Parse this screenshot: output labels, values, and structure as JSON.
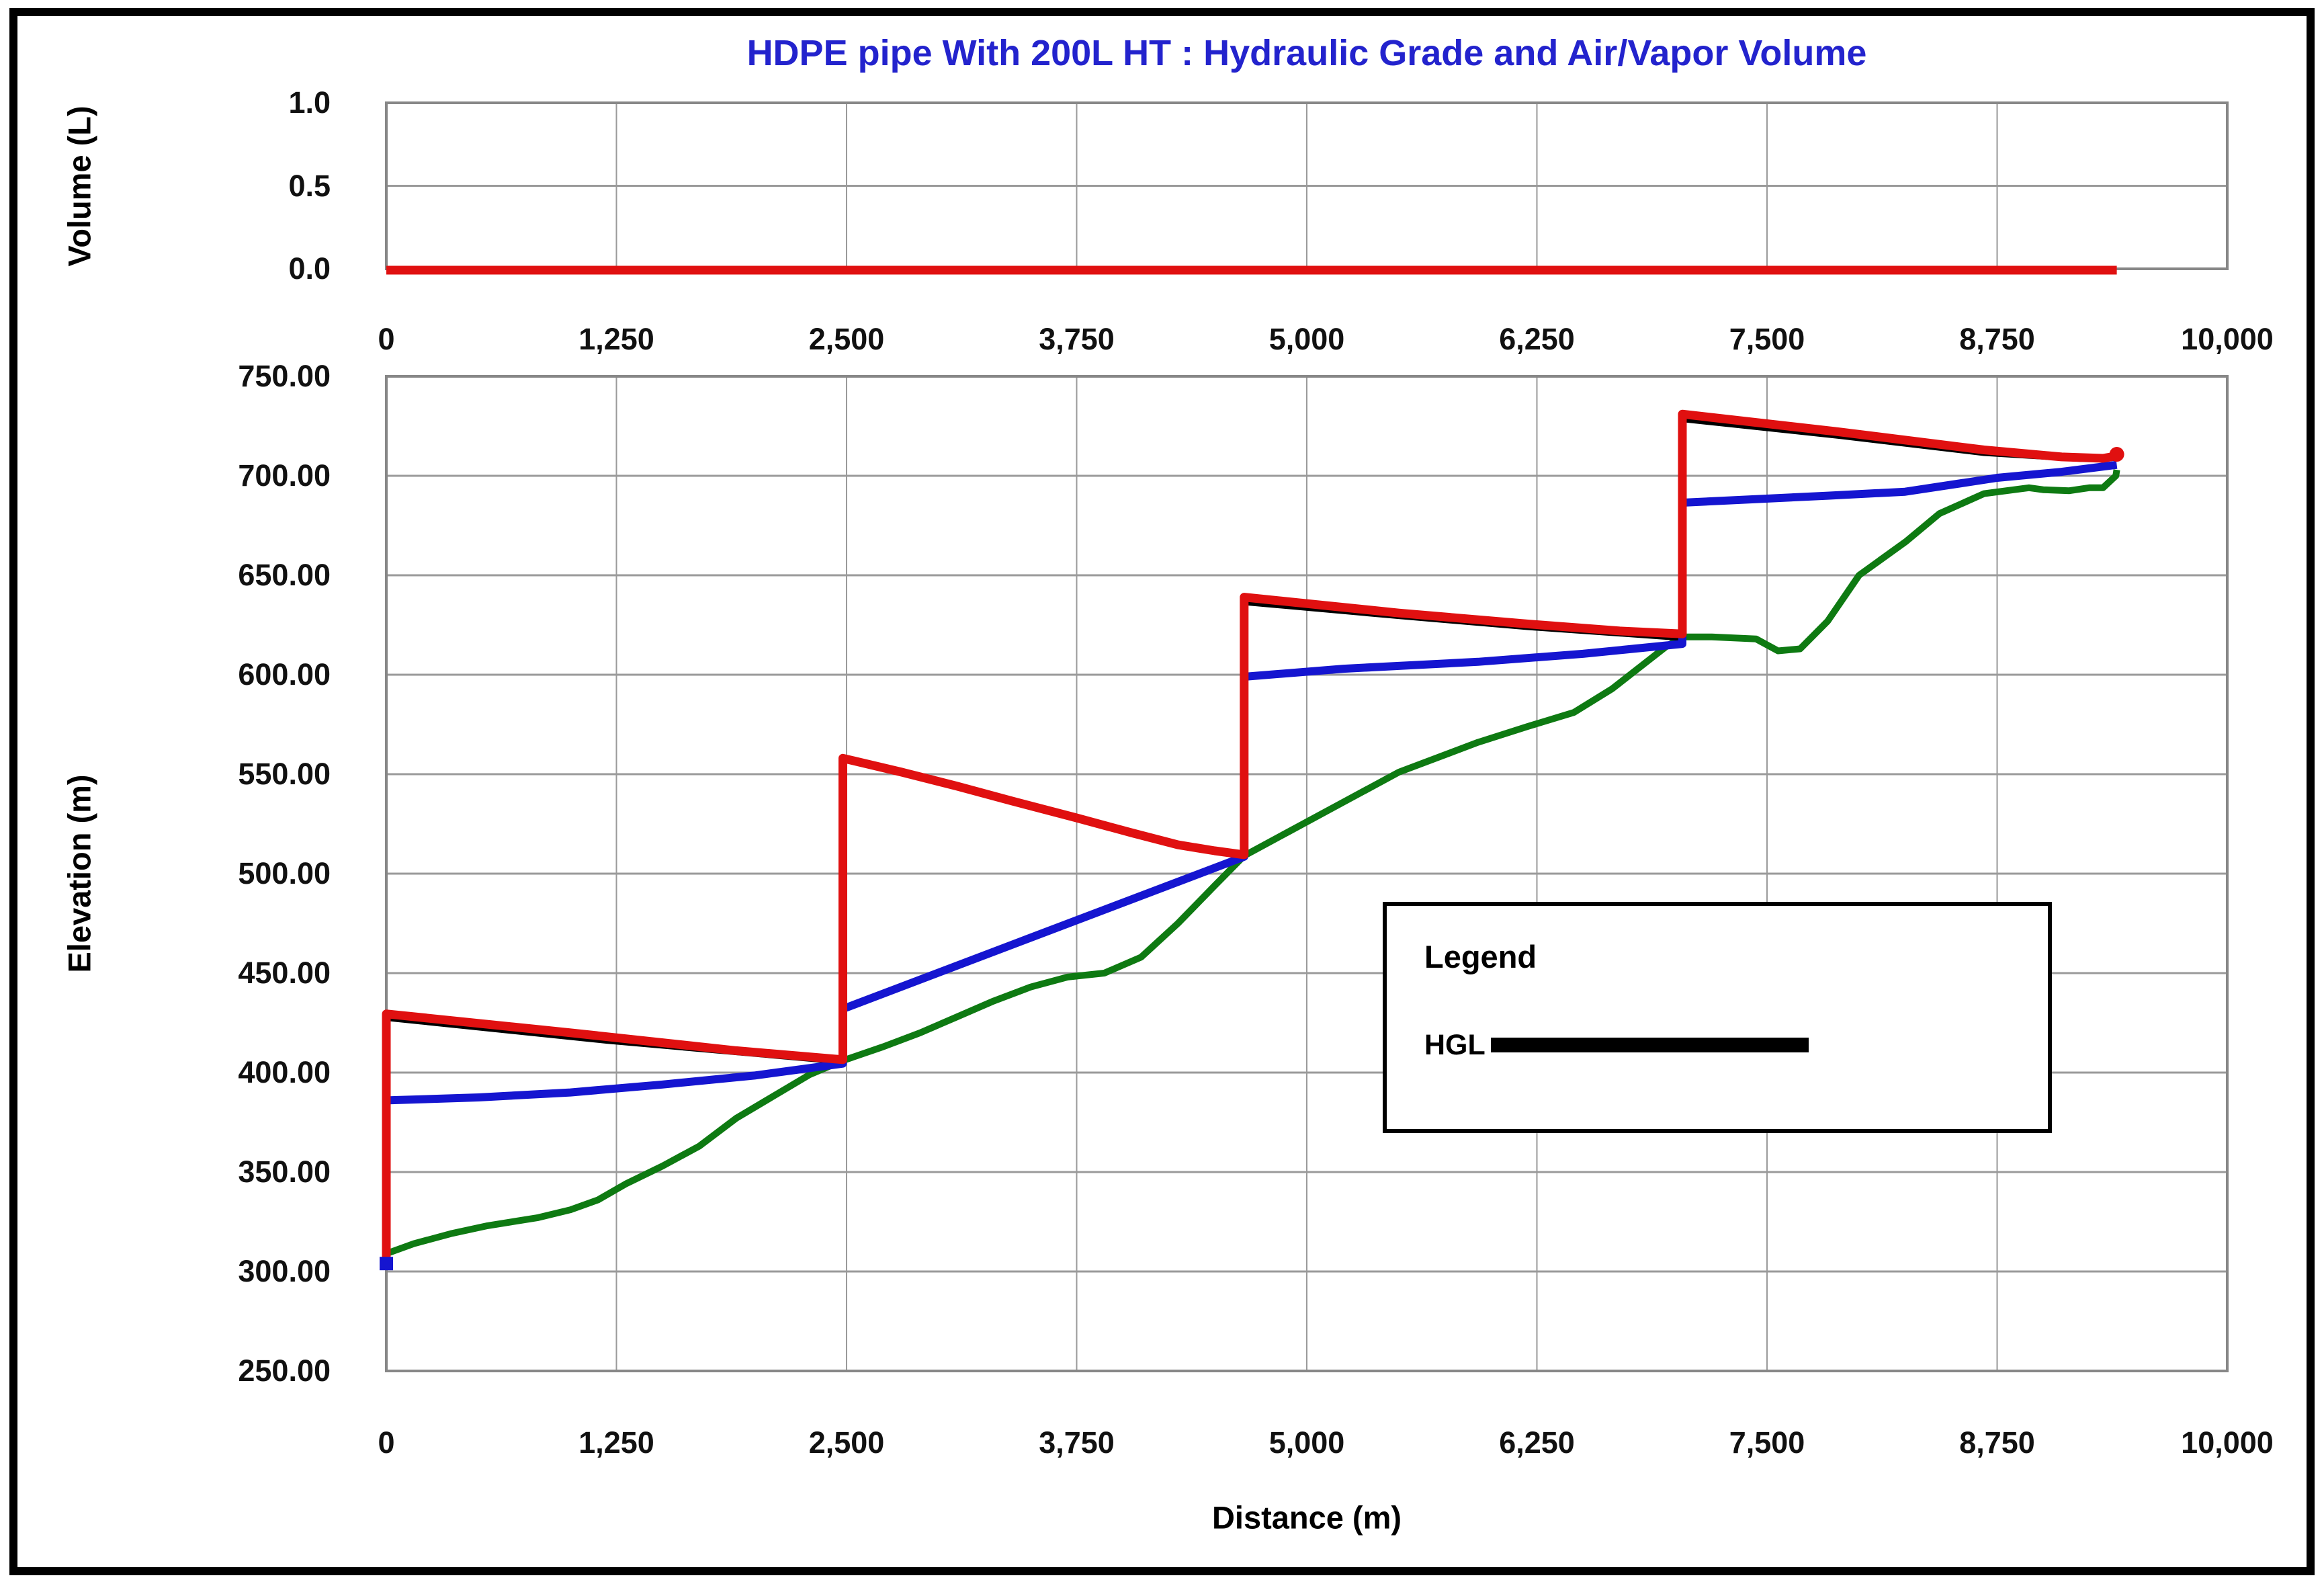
{
  "title": {
    "text": "HDPE pipe With 200L HT : Hydraulic Grade and Air/Vapor Volume",
    "color": "#2323cd"
  },
  "axes": {
    "volume_label": "Volume (L)",
    "elevation_label": "Elevation (m)",
    "distance_label": "Distance (m)",
    "volume_ticks": [
      "1.0",
      "0.5",
      "0.0"
    ],
    "elevation_ticks": [
      "750.00",
      "700.00",
      "650.00",
      "600.00",
      "550.00",
      "500.00",
      "450.00",
      "400.00",
      "350.00",
      "300.00",
      "250.00"
    ],
    "distance_ticks": [
      "0",
      "1,250",
      "2,500",
      "3,750",
      "5,000",
      "6,250",
      "7,500",
      "8,750",
      "10,000"
    ]
  },
  "legend": {
    "title": "Legend",
    "items": [
      {
        "label": "HGL",
        "color": "#000000",
        "swatch": "line"
      }
    ]
  },
  "colors": {
    "max_hgl_envelope": "#e01010",
    "min_hgl_envelope": "#1515d0",
    "pipe_profile": "#0e7a12",
    "steady_hgl": "#000000",
    "grid": "#9a9a9a",
    "plot_border": "#878787",
    "title": "#2323cd"
  },
  "chart_data": [
    {
      "id": "air_vapor_volume",
      "type": "line",
      "ylabel": "Volume (L)",
      "ylim": [
        0,
        1
      ],
      "ytick_values": [
        1.0,
        0.5,
        0.0
      ],
      "xlim": [
        0,
        10000
      ],
      "xtick_values": [
        0,
        1250,
        2500,
        3750,
        5000,
        6250,
        7500,
        8750,
        10000
      ],
      "grid": true,
      "series": [
        {
          "name": "air-vapor-volume",
          "color": "#e01010",
          "width": 13,
          "points": [
            [
              0,
              0.0
            ],
            [
              9400,
              0.0
            ]
          ]
        }
      ]
    },
    {
      "id": "hydraulic_grade_profile",
      "type": "line",
      "ylabel": "Elevation (m)",
      "xlabel": "Distance (m)",
      "ylim": [
        250,
        750
      ],
      "ytick_values": [
        750,
        700,
        650,
        600,
        550,
        500,
        450,
        400,
        350,
        300,
        250
      ],
      "xlim": [
        0,
        10000
      ],
      "xtick_values": [
        0,
        1250,
        2500,
        3750,
        5000,
        6250,
        7500,
        8750,
        10000
      ],
      "grid": true,
      "legend_position": "inside-right",
      "station_distances_m": [
        0,
        2480,
        4660,
        7040,
        9400
      ],
      "series": [
        {
          "name": "pipe-profile",
          "color": "#0e7a12",
          "width": 10,
          "points": [
            [
              0,
              309
            ],
            [
              150,
              314
            ],
            [
              350,
              319
            ],
            [
              550,
              323
            ],
            [
              820,
              327
            ],
            [
              1000,
              331
            ],
            [
              1150,
              336
            ],
            [
              1300,
              344
            ],
            [
              1500,
              353
            ],
            [
              1700,
              363
            ],
            [
              1900,
              377
            ],
            [
              2100,
              388
            ],
            [
              2300,
              399
            ],
            [
              2480,
              406
            ],
            [
              2700,
              413
            ],
            [
              2900,
              420
            ],
            [
              3100,
              428
            ],
            [
              3300,
              436
            ],
            [
              3500,
              443
            ],
            [
              3700,
              448
            ],
            [
              3900,
              450
            ],
            [
              4100,
              458
            ],
            [
              4300,
              475
            ],
            [
              4500,
              494
            ],
            [
              4660,
              509
            ],
            [
              4900,
              521
            ],
            [
              5200,
              536
            ],
            [
              5500,
              551
            ],
            [
              5930,
              566
            ],
            [
              6200,
              574
            ],
            [
              6450,
              581
            ],
            [
              6660,
              593
            ],
            [
              6950,
              614
            ],
            [
              7040,
              619
            ],
            [
              7200,
              619
            ],
            [
              7440,
              618
            ],
            [
              7560,
              612
            ],
            [
              7680,
              613
            ],
            [
              7830,
              627
            ],
            [
              8000,
              650
            ],
            [
              8255,
              667
            ],
            [
              8437,
              681
            ],
            [
              8679,
              691
            ],
            [
              8923,
              694
            ],
            [
              9000,
              693
            ],
            [
              9142,
              692.5
            ],
            [
              9250,
              694
            ],
            [
              9325,
              694
            ],
            [
              9395,
              700
            ],
            [
              9400,
              703
            ]
          ]
        },
        {
          "name": "steady-hgl-reach1",
          "color": "#000000",
          "width": 9,
          "points": [
            [
              0,
              427.5
            ],
            [
              1200,
              416
            ],
            [
              2480,
              405.5
            ]
          ]
        },
        {
          "name": "steady-hgl-reach3",
          "color": "#000000",
          "width": 9,
          "points": [
            [
              4660,
              636.5
            ],
            [
              5500,
              629.5
            ],
            [
              6200,
              624
            ],
            [
              7040,
              618.5
            ]
          ]
        },
        {
          "name": "steady-hgl-reach4",
          "color": "#000000",
          "width": 9,
          "points": [
            [
              7040,
              728.5
            ],
            [
              7900,
              720
            ],
            [
              8679,
              711.5
            ],
            [
              9200,
              708.5
            ],
            [
              9400,
              709
            ]
          ]
        },
        {
          "name": "min-hgl-envelope",
          "color": "#1515d0",
          "width": 12,
          "points": [
            [
              0,
              386
            ],
            [
              500,
              387.5
            ],
            [
              1000,
              390
            ],
            [
              1500,
              394
            ],
            [
              2000,
              398.5
            ],
            [
              2480,
              404.5
            ],
            [
              2480,
              432
            ],
            [
              4660,
              508.5
            ],
            [
              4660,
              599
            ],
            [
              5200,
              603
            ],
            [
              5930,
              606.5
            ],
            [
              6500,
              610.5
            ],
            [
              7040,
              615.5
            ],
            [
              7040,
              686.5
            ],
            [
              7830,
              690
            ],
            [
              8250,
              692
            ],
            [
              8750,
              699
            ],
            [
              9100,
              702
            ],
            [
              9400,
              705.5
            ]
          ]
        },
        {
          "name": "max-hgl-envelope",
          "color": "#e01010",
          "width": 13,
          "points": [
            [
              0,
              306
            ],
            [
              0,
              429.5
            ],
            [
              1000,
              420
            ],
            [
              1900,
              411
            ],
            [
              2480,
              406.5
            ],
            [
              2480,
              558
            ],
            [
              2800,
              551
            ],
            [
              3100,
              544
            ],
            [
              3400,
              536.5
            ],
            [
              3750,
              528
            ],
            [
              4050,
              520.5
            ],
            [
              4300,
              514.5
            ],
            [
              4500,
              511.5
            ],
            [
              4660,
              509.5
            ],
            [
              4660,
              639
            ],
            [
              5500,
              631
            ],
            [
              6200,
              625.5
            ],
            [
              6700,
              622
            ],
            [
              7040,
              620.5
            ],
            [
              7040,
              731
            ],
            [
              7900,
              722
            ],
            [
              8679,
              713
            ],
            [
              9100,
              709.5
            ],
            [
              9325,
              708.8
            ],
            [
              9400,
              710
            ]
          ]
        }
      ],
      "markers": [
        {
          "name": "reservoir-start-marker",
          "shape": "square",
          "color": "#1515d0",
          "x": 0,
          "y": 304,
          "size": 20
        },
        {
          "name": "pipeline-end-marker",
          "shape": "circle",
          "color": "#e01010",
          "x": 9400,
          "y": 710.8,
          "size": 22
        }
      ]
    }
  ]
}
